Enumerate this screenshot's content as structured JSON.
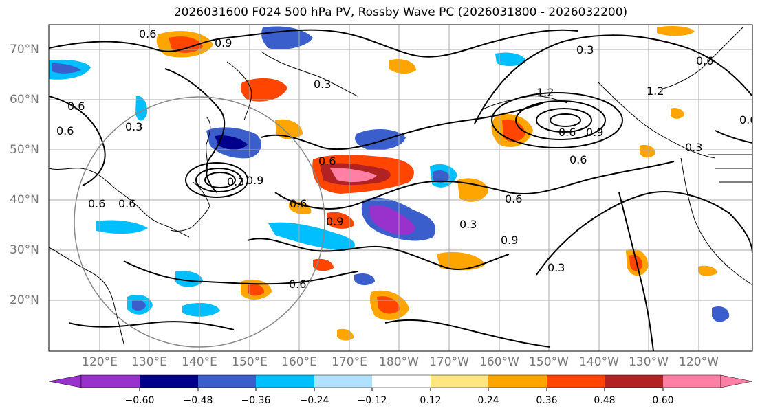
{
  "title": "2026031600 F024 500 hPa PV, Rossby Wave PC (2026031800 - 2026032200)",
  "lat_labels": [
    "70°N",
    "60°N",
    "50°N",
    "40°N",
    "30°N",
    "20°N"
  ],
  "lon_labels": [
    "120°E",
    "130°E",
    "140°E",
    "150°E",
    "160°E",
    "170°E",
    "180°W",
    "170°W",
    "160°W",
    "150°W",
    "140°W",
    "130°W",
    "120°W"
  ],
  "colorbar": {
    "ticks": [
      "−0.60",
      "−0.48",
      "−0.36",
      "−0.24",
      "−0.12",
      "0.12",
      "0.24",
      "0.36",
      "0.48",
      "0.60"
    ],
    "colors": [
      "#9932cc",
      "#00008b",
      "#3a5fcd",
      "#00bfff",
      "#b0e2ff",
      "#ffffff",
      "#ffe680",
      "#ffa500",
      "#ff4500",
      "#b22222",
      "#ff7fa5"
    ]
  },
  "contour_labels": [
    "0.6",
    "0.9",
    "0.3",
    "0.6",
    "0.6",
    "0.3",
    "0.6",
    "0.9",
    "1.2",
    "0.6",
    "1.2",
    "0.6",
    "0.3",
    "0.6",
    "0.9",
    "0.3",
    "0.6",
    "0.9",
    "0.6",
    "0.3",
    "0.6",
    "0.3",
    "0.6",
    "0.6",
    "0.6",
    "0.3",
    "0.9"
  ],
  "colors": {
    "land_border": "#000000",
    "grid": "#aaaaaa",
    "contour": "#000000",
    "circle": "#888888"
  }
}
